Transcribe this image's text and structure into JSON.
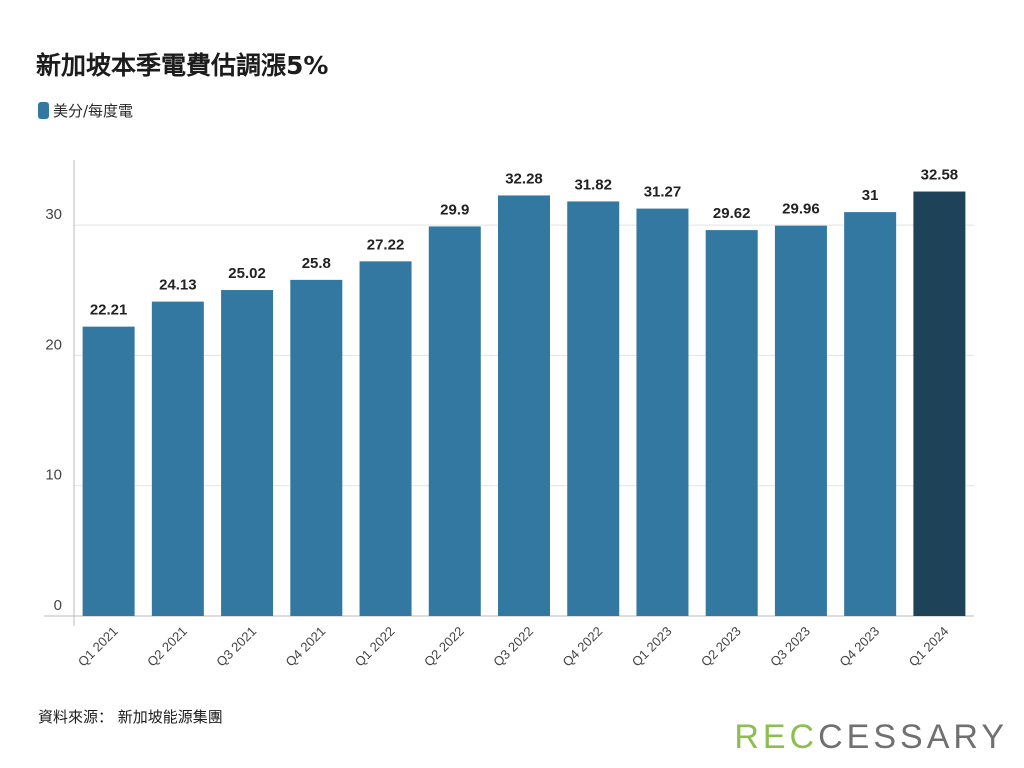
{
  "chart_data": {
    "type": "bar",
    "title": "新加坡本季電費估調漲5%",
    "categories": [
      "Q1 2021",
      "Q2 2021",
      "Q3 2021",
      "Q4 2021",
      "Q1 2022",
      "Q2 2022",
      "Q3 2022",
      "Q4 2022",
      "Q1 2023",
      "Q2 2023",
      "Q3 2023",
      "Q4 2023",
      "Q1 2024"
    ],
    "series": [
      {
        "name": "美分/每度電",
        "values": [
          22.21,
          24.13,
          25.02,
          25.8,
          27.22,
          29.9,
          32.28,
          31.82,
          31.27,
          29.62,
          29.96,
          31,
          32.58
        ],
        "labels": [
          "22.21",
          "24.13",
          "25.02",
          "25.8",
          "27.22",
          "29.9",
          "32.28",
          "31.82",
          "31.27",
          "29.62",
          "29.96",
          "31",
          "32.58"
        ]
      }
    ],
    "ylim": [
      0,
      35
    ],
    "yticks": [
      0,
      10,
      20,
      30
    ],
    "grid": true,
    "legend_position": "top-left",
    "colors": {
      "bar": "#3378a1",
      "highlight": "#1e4358",
      "grid": "#e3e3e3",
      "axis": "#bbbbbb"
    },
    "highlight_index": 12
  },
  "source": "資料來源： 新加坡能源集團",
  "logo": {
    "green_part": "REC",
    "gray_part": "CESSARY",
    "colors": {
      "green": "#8cbf4d",
      "gray": "#707070"
    }
  }
}
